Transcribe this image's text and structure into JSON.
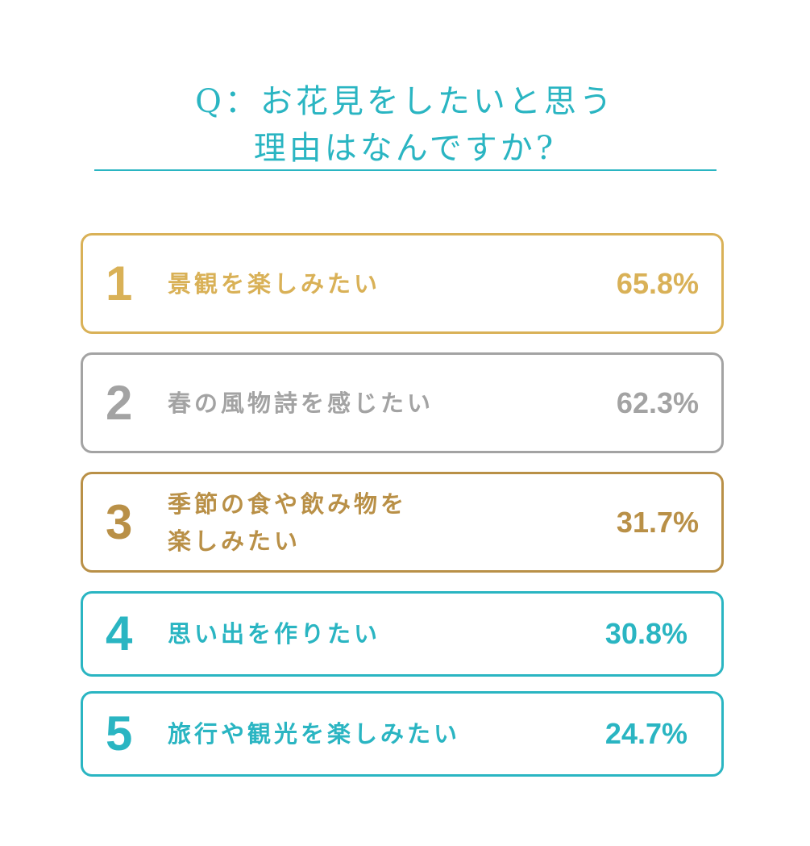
{
  "title": {
    "line1": "Q：お花見をしたいと思う",
    "line2": "理由はなんですか?"
  },
  "colors": {
    "teal": "#2ab5c2",
    "gold": "#d9b157",
    "gray": "#a3a3a3",
    "bronze": "#b99047"
  },
  "ranking": [
    {
      "rank": "1",
      "label": "景観を楽しみたい",
      "percent": "65.8%",
      "color": "#d9b157"
    },
    {
      "rank": "2",
      "label": "春の風物詩を感じたい",
      "percent": "62.3%",
      "color": "#a3a3a3"
    },
    {
      "rank": "3",
      "label": "季節の食や飲み物を\n楽しみたい",
      "percent": "31.7%",
      "color": "#b99047"
    },
    {
      "rank": "4",
      "label": "思い出を作りたい",
      "percent": "30.8%",
      "color": "#2ab5c2"
    },
    {
      "rank": "5",
      "label": "旅行や観光を楽しみたい",
      "percent": "24.7%",
      "color": "#2ab5c2"
    }
  ]
}
